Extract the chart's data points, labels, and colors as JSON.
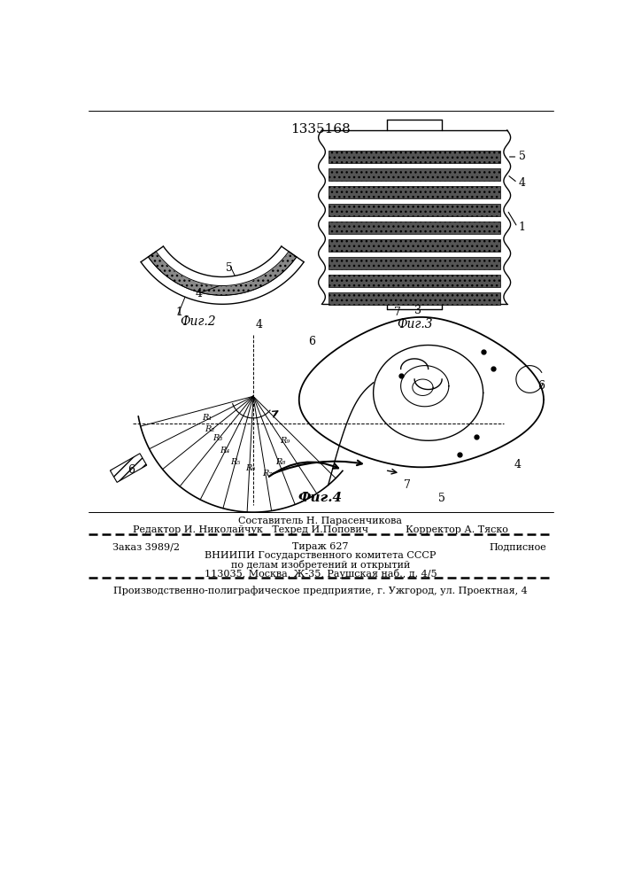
{
  "patent_number": "1335168",
  "fig2_label": "Фиг.2",
  "fig3_label": "Фиг.3",
  "fig4_label": "Фиг.4",
  "footer_line1": "Составитель Н. Парасенчикова",
  "footer_line2": "Редактор И. Николайчук   Техред И.Попович            Корректор А. Тяско",
  "footer_line3": "Заказ 3989/2          Тираж 627             Подписное",
  "footer_line4": "ВНИИПИ Государственного комитета СССР",
  "footer_line5": "по делам изобретений и открытий",
  "footer_line6": "113035, Москва, Ж-35, Раушская наб., д. 4/5",
  "footer_line7": "Производственно-полиграфическое предприятие, г. Ужгород, ул. Проектная, 4",
  "bg_color": "#ffffff"
}
